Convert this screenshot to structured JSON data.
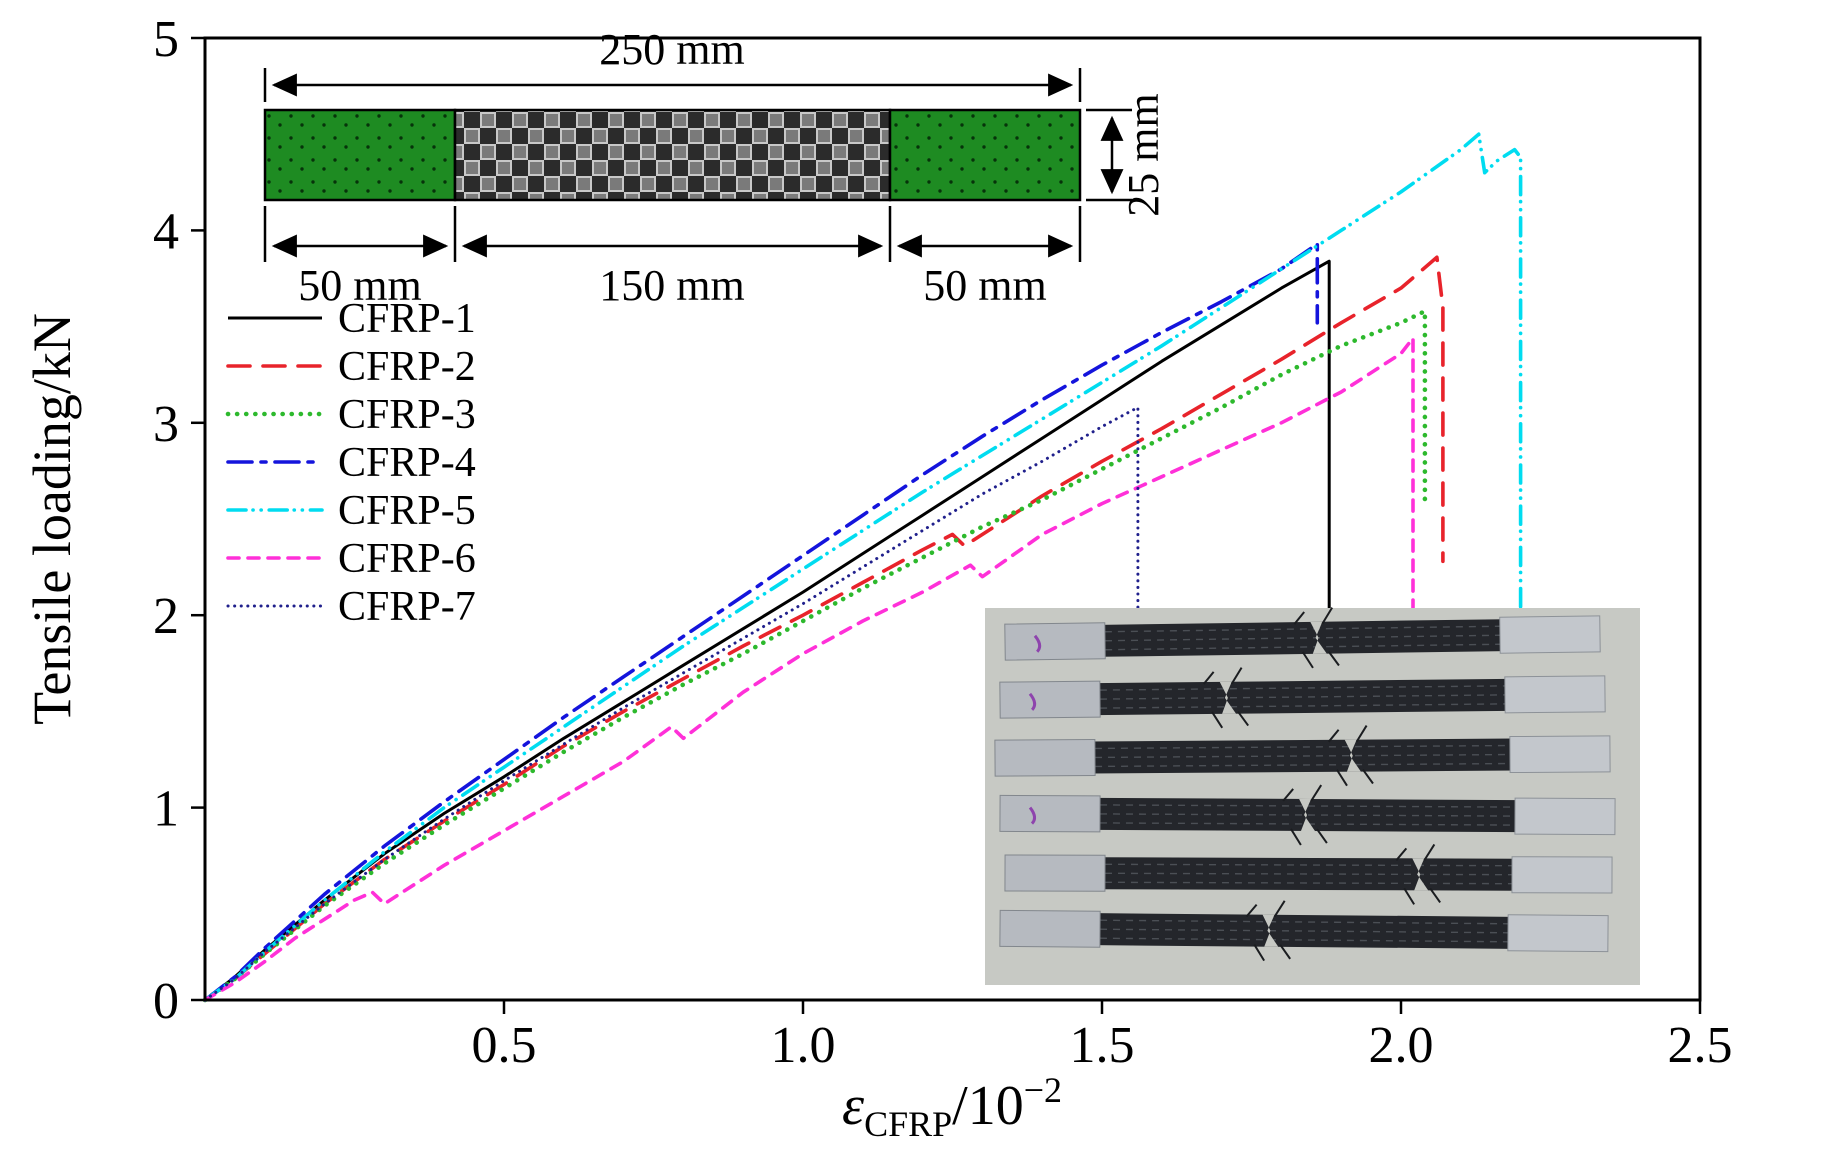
{
  "figure": {
    "background": "#ffffff"
  },
  "axes": {
    "ylabel": "Tensile loading/kN",
    "xlabel": {
      "symbol": "ε",
      "subscript": "CFRP",
      "divisor": "/10",
      "exponent": "−2"
    }
  },
  "schematic": {
    "dim_total": "250 mm",
    "dim_left": "50 mm",
    "dim_mid": "150 mm",
    "dim_right": "50 mm",
    "dim_width": "25 mm",
    "tab_color": "#1e8b22",
    "weave_dark": "#2b2b2b",
    "weave_light": "#c8c8c8"
  },
  "chart_data": {
    "type": "line",
    "title": "",
    "xlabel": "ε_CFRP/10⁻²",
    "ylabel": "Tensile loading/kN",
    "xlim": [
      0,
      2.5
    ],
    "ylim": [
      0,
      5
    ],
    "xticks": [
      0.5,
      1.0,
      1.5,
      2.0,
      2.5
    ],
    "xtick_labels": [
      "0.5",
      "1.0",
      "1.5",
      "2.0",
      "2.5"
    ],
    "yticks": [
      0,
      1,
      2,
      3,
      4,
      5
    ],
    "ytick_labels": [
      "0",
      "1",
      "2",
      "3",
      "4",
      "5"
    ],
    "grid": false,
    "legend_position": "center left",
    "series": [
      {
        "name": "CFRP-1",
        "color": "#000000",
        "style": "solid",
        "width": 3,
        "points": [
          [
            0,
            0
          ],
          [
            0.05,
            0.12
          ],
          [
            0.1,
            0.26
          ],
          [
            0.2,
            0.52
          ],
          [
            0.3,
            0.76
          ],
          [
            0.4,
            0.97
          ],
          [
            0.5,
            1.16
          ],
          [
            0.6,
            1.36
          ],
          [
            0.7,
            1.55
          ],
          [
            0.8,
            1.74
          ],
          [
            0.9,
            1.93
          ],
          [
            1.0,
            2.12
          ],
          [
            1.1,
            2.32
          ],
          [
            1.2,
            2.52
          ],
          [
            1.3,
            2.72
          ],
          [
            1.4,
            2.92
          ],
          [
            1.5,
            3.12
          ],
          [
            1.6,
            3.32
          ],
          [
            1.7,
            3.51
          ],
          [
            1.8,
            3.7
          ],
          [
            1.88,
            3.84
          ],
          [
            1.88,
            2.02
          ]
        ]
      },
      {
        "name": "CFRP-2",
        "color": "#e8232b",
        "style": "dashed",
        "width": 3.6,
        "points": [
          [
            0,
            0
          ],
          [
            0.05,
            0.11
          ],
          [
            0.1,
            0.24
          ],
          [
            0.2,
            0.5
          ],
          [
            0.3,
            0.73
          ],
          [
            0.4,
            0.93
          ],
          [
            0.5,
            1.12
          ],
          [
            0.6,
            1.32
          ],
          [
            0.7,
            1.5
          ],
          [
            0.8,
            1.67
          ],
          [
            0.9,
            1.84
          ],
          [
            1.0,
            2.0
          ],
          [
            1.1,
            2.17
          ],
          [
            1.2,
            2.34
          ],
          [
            1.25,
            2.42
          ],
          [
            1.27,
            2.36
          ],
          [
            1.4,
            2.62
          ],
          [
            1.5,
            2.8
          ],
          [
            1.6,
            2.97
          ],
          [
            1.7,
            3.15
          ],
          [
            1.8,
            3.33
          ],
          [
            1.9,
            3.52
          ],
          [
            2.0,
            3.7
          ],
          [
            2.06,
            3.86
          ],
          [
            2.07,
            3.6
          ],
          [
            2.07,
            2.28
          ]
        ]
      },
      {
        "name": "CFRP-3",
        "color": "#2db92d",
        "style": "dotted",
        "width": 4.6,
        "points": [
          [
            0,
            0
          ],
          [
            0.05,
            0.11
          ],
          [
            0.1,
            0.24
          ],
          [
            0.2,
            0.49
          ],
          [
            0.3,
            0.71
          ],
          [
            0.4,
            0.91
          ],
          [
            0.5,
            1.1
          ],
          [
            0.6,
            1.29
          ],
          [
            0.7,
            1.47
          ],
          [
            0.8,
            1.64
          ],
          [
            0.9,
            1.8
          ],
          [
            1.0,
            1.97
          ],
          [
            1.1,
            2.14
          ],
          [
            1.2,
            2.3
          ],
          [
            1.3,
            2.46
          ],
          [
            1.4,
            2.6
          ],
          [
            1.5,
            2.76
          ],
          [
            1.6,
            2.92
          ],
          [
            1.7,
            3.08
          ],
          [
            1.8,
            3.25
          ],
          [
            1.9,
            3.4
          ],
          [
            2.0,
            3.52
          ],
          [
            2.04,
            3.58
          ],
          [
            2.04,
            2.56
          ]
        ]
      },
      {
        "name": "CFRP-4",
        "color": "#1414dc",
        "style": "dashdot",
        "width": 3.6,
        "points": [
          [
            0,
            0
          ],
          [
            0.05,
            0.12
          ],
          [
            0.1,
            0.27
          ],
          [
            0.2,
            0.55
          ],
          [
            0.3,
            0.8
          ],
          [
            0.4,
            1.03
          ],
          [
            0.5,
            1.25
          ],
          [
            0.6,
            1.47
          ],
          [
            0.7,
            1.68
          ],
          [
            0.8,
            1.89
          ],
          [
            0.9,
            2.1
          ],
          [
            1.0,
            2.31
          ],
          [
            1.1,
            2.52
          ],
          [
            1.2,
            2.73
          ],
          [
            1.3,
            2.93
          ],
          [
            1.4,
            3.12
          ],
          [
            1.5,
            3.3
          ],
          [
            1.6,
            3.47
          ],
          [
            1.7,
            3.63
          ],
          [
            1.8,
            3.8
          ],
          [
            1.86,
            3.93
          ],
          [
            1.86,
            3.52
          ]
        ]
      },
      {
        "name": "CFRP-5",
        "color": "#00dcf0",
        "style": "dashdotdot",
        "width": 3.6,
        "points": [
          [
            0,
            0
          ],
          [
            0.05,
            0.11
          ],
          [
            0.1,
            0.25
          ],
          [
            0.2,
            0.52
          ],
          [
            0.3,
            0.77
          ],
          [
            0.4,
            1.0
          ],
          [
            0.5,
            1.21
          ],
          [
            0.6,
            1.42
          ],
          [
            0.7,
            1.63
          ],
          [
            0.8,
            1.84
          ],
          [
            0.9,
            2.04
          ],
          [
            1.0,
            2.24
          ],
          [
            1.1,
            2.44
          ],
          [
            1.2,
            2.64
          ],
          [
            1.3,
            2.83
          ],
          [
            1.4,
            3.02
          ],
          [
            1.5,
            3.21
          ],
          [
            1.6,
            3.4
          ],
          [
            1.7,
            3.6
          ],
          [
            1.8,
            3.8
          ],
          [
            1.9,
            4.0
          ],
          [
            2.0,
            4.2
          ],
          [
            2.1,
            4.42
          ],
          [
            2.13,
            4.5
          ],
          [
            2.14,
            4.3
          ],
          [
            2.16,
            4.36
          ],
          [
            2.19,
            4.42
          ],
          [
            2.2,
            4.38
          ],
          [
            2.2,
            1.98
          ]
        ]
      },
      {
        "name": "CFRP-6",
        "color": "#ff30d8",
        "style": "dashed-short",
        "width": 3.6,
        "points": [
          [
            0,
            0
          ],
          [
            0.05,
            0.09
          ],
          [
            0.1,
            0.2
          ],
          [
            0.15,
            0.32
          ],
          [
            0.2,
            0.42
          ],
          [
            0.25,
            0.52
          ],
          [
            0.28,
            0.56
          ],
          [
            0.3,
            0.5
          ],
          [
            0.4,
            0.7
          ],
          [
            0.5,
            0.88
          ],
          [
            0.6,
            1.06
          ],
          [
            0.7,
            1.24
          ],
          [
            0.78,
            1.42
          ],
          [
            0.8,
            1.36
          ],
          [
            0.9,
            1.6
          ],
          [
            1.0,
            1.8
          ],
          [
            1.1,
            1.97
          ],
          [
            1.2,
            2.12
          ],
          [
            1.28,
            2.26
          ],
          [
            1.3,
            2.2
          ],
          [
            1.4,
            2.42
          ],
          [
            1.5,
            2.58
          ],
          [
            1.6,
            2.72
          ],
          [
            1.7,
            2.86
          ],
          [
            1.8,
            3.0
          ],
          [
            1.9,
            3.16
          ],
          [
            2.0,
            3.36
          ],
          [
            2.02,
            3.44
          ],
          [
            2.02,
            1.98
          ]
        ]
      },
      {
        "name": "CFRP-7",
        "color": "#20208c",
        "style": "fine-dotted",
        "width": 3,
        "points": [
          [
            0,
            0
          ],
          [
            0.05,
            0.11
          ],
          [
            0.1,
            0.25
          ],
          [
            0.2,
            0.5
          ],
          [
            0.3,
            0.73
          ],
          [
            0.4,
            0.94
          ],
          [
            0.5,
            1.14
          ],
          [
            0.6,
            1.33
          ],
          [
            0.7,
            1.52
          ],
          [
            0.8,
            1.7
          ],
          [
            0.9,
            1.88
          ],
          [
            1.0,
            2.06
          ],
          [
            1.1,
            2.25
          ],
          [
            1.2,
            2.44
          ],
          [
            1.3,
            2.63
          ],
          [
            1.4,
            2.8
          ],
          [
            1.5,
            2.98
          ],
          [
            1.56,
            3.08
          ],
          [
            1.56,
            1.95
          ]
        ]
      }
    ]
  }
}
